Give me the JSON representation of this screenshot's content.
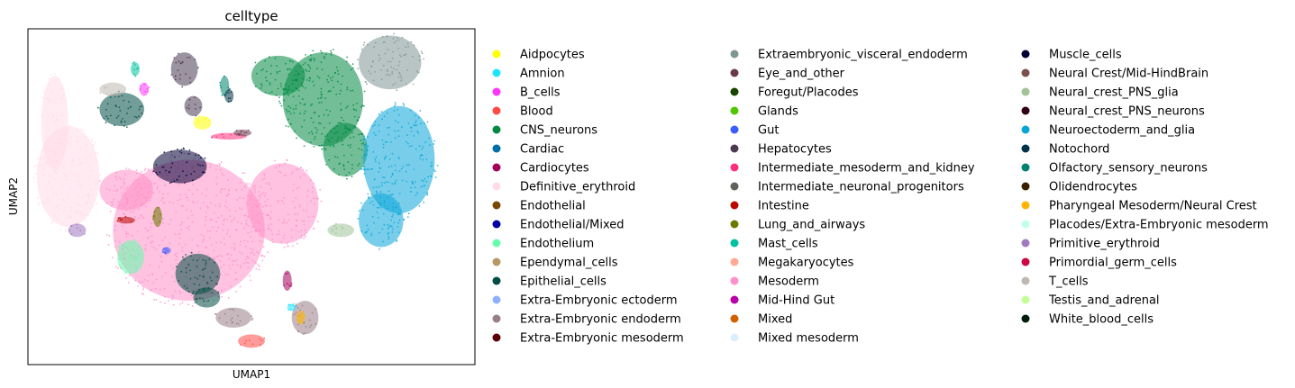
{
  "chart_data": {
    "type": "scatter",
    "title": "celltype",
    "xlabel": "UMAP1",
    "ylabel": "UMAP2",
    "xlim": [
      0,
      100
    ],
    "ylim": [
      0,
      100
    ],
    "xticks": [],
    "yticks": [],
    "grid": false,
    "legend_placement": "right",
    "legend_columns": 3,
    "legend": [
      {
        "name": "Aidpocytes",
        "color": "#ffff00"
      },
      {
        "name": "Amnion",
        "color": "#1ce6ff"
      },
      {
        "name": "B_cells",
        "color": "#ff34ff"
      },
      {
        "name": "Blood",
        "color": "#ff4a46"
      },
      {
        "name": "CNS_neurons",
        "color": "#008941"
      },
      {
        "name": "Cardiac",
        "color": "#006fa6"
      },
      {
        "name": "Cardiocytes",
        "color": "#a30059"
      },
      {
        "name": "Definitive_erythroid",
        "color": "#ffdbe5"
      },
      {
        "name": "Endothelial",
        "color": "#7a4900"
      },
      {
        "name": "Endothelial/Mixed",
        "color": "#0000a6"
      },
      {
        "name": "Endothelium",
        "color": "#63ffac"
      },
      {
        "name": "Ependymal_cells",
        "color": "#b79762"
      },
      {
        "name": "Epithelial_cells",
        "color": "#004d43"
      },
      {
        "name": "Extra-Embryonic ectoderm",
        "color": "#8fb0ff"
      },
      {
        "name": "Extra-Embryonic endoderm",
        "color": "#997d87"
      },
      {
        "name": "Extra-Embryonic mesoderm",
        "color": "#5a0007"
      },
      {
        "name": "Extraembryonic_visceral_endoderm",
        "color": "#809693"
      },
      {
        "name": "Eye_and_other",
        "color": "#6a3a4c"
      },
      {
        "name": "Foregut/Placodes",
        "color": "#1b4400"
      },
      {
        "name": "Glands",
        "color": "#4fc601"
      },
      {
        "name": "Gut",
        "color": "#3b5dff"
      },
      {
        "name": "Hepatocytes",
        "color": "#4a3b53"
      },
      {
        "name": "Intermediate_mesoderm_and_kidney",
        "color": "#ff2f80"
      },
      {
        "name": "Intermediate_neuronal_progenitors",
        "color": "#61615a"
      },
      {
        "name": "Intestine",
        "color": "#ba0900"
      },
      {
        "name": "Lung_and_airways",
        "color": "#6b7900"
      },
      {
        "name": "Mast_cells",
        "color": "#00c2a0"
      },
      {
        "name": "Megakaryocytes",
        "color": "#ffaa92"
      },
      {
        "name": "Mesoderm",
        "color": "#ff90c9"
      },
      {
        "name": "Mid-Hind Gut",
        "color": "#b903aa"
      },
      {
        "name": "Mixed",
        "color": "#d16100"
      },
      {
        "name": "Mixed mesoderm",
        "color": "#ddefff"
      },
      {
        "name": "Muscle_cells",
        "color": "#000035"
      },
      {
        "name": "Neural Crest/Mid-HindBrain",
        "color": "#7b4f4b"
      },
      {
        "name": "Neural_crest_PNS_glia",
        "color": "#a1c299"
      },
      {
        "name": "Neural_crest_PNS_neurons",
        "color": "#300018"
      },
      {
        "name": "Neuroectoderm_and_glia",
        "color": "#0aa6d8"
      },
      {
        "name": "Notochord",
        "color": "#013349"
      },
      {
        "name": "Olfactory_sensory_neurons",
        "color": "#00846f"
      },
      {
        "name": "Olidendrocytes",
        "color": "#372101"
      },
      {
        "name": "Pharyngeal Mesoderm/Neural Crest",
        "color": "#ffb500"
      },
      {
        "name": "Placodes/Extra-Embryonic mesoderm",
        "color": "#c2ffed"
      },
      {
        "name": "Primitive_erythroid",
        "color": "#a079bf"
      },
      {
        "name": "Primordial_germ_cells",
        "color": "#cc0744"
      },
      {
        "name": "T_cells",
        "color": "#c0b9b2"
      },
      {
        "name": "Testis_and_adrenal",
        "color": "#c2ff99"
      },
      {
        "name": "White_blood_cells",
        "color": "#001e09"
      }
    ],
    "clusters": [
      {
        "name": "Mesoderm",
        "x": 36,
        "y": 40,
        "rx": 17,
        "ry": 21
      },
      {
        "name": "Mesoderm",
        "x": 57,
        "y": 48,
        "rx": 8,
        "ry": 12
      },
      {
        "name": "Mesoderm",
        "x": 22,
        "y": 52,
        "rx": 6,
        "ry": 6
      },
      {
        "name": "Definitive_erythroid",
        "x": 9,
        "y": 56,
        "rx": 7,
        "ry": 15
      },
      {
        "name": "Definitive_erythroid",
        "x": 6,
        "y": 72,
        "rx": 3,
        "ry": 14
      },
      {
        "name": "CNS_neurons",
        "x": 66,
        "y": 79,
        "rx": 9,
        "ry": 14
      },
      {
        "name": "CNS_neurons",
        "x": 56,
        "y": 86,
        "rx": 6,
        "ry": 6
      },
      {
        "name": "CNS_neurons",
        "x": 71,
        "y": 64,
        "rx": 5,
        "ry": 8
      },
      {
        "name": "Neuroectoderm_and_glia",
        "x": 83,
        "y": 61,
        "rx": 8,
        "ry": 16
      },
      {
        "name": "Neuroectoderm_and_glia",
        "x": 79,
        "y": 43,
        "rx": 5,
        "ry": 8
      },
      {
        "name": "Extraembryonic_visceral_endoderm",
        "x": 81,
        "y": 90,
        "rx": 7,
        "ry": 8
      },
      {
        "name": "Epithelial_cells",
        "x": 21,
        "y": 76,
        "rx": 5,
        "ry": 5
      },
      {
        "name": "Epithelial_cells",
        "x": 38,
        "y": 27,
        "rx": 5,
        "ry": 6
      },
      {
        "name": "Epithelial_cells",
        "x": 40,
        "y": 20,
        "rx": 3,
        "ry": 3
      },
      {
        "name": "Muscle_cells",
        "x": 34,
        "y": 59,
        "rx": 6,
        "ry": 5
      },
      {
        "name": "Hepatocytes",
        "x": 35,
        "y": 88,
        "rx": 3,
        "ry": 5
      },
      {
        "name": "Hepatocytes",
        "x": 37,
        "y": 77,
        "rx": 2,
        "ry": 3
      },
      {
        "name": "Endothelium",
        "x": 23,
        "y": 32,
        "rx": 3,
        "ry": 5
      },
      {
        "name": "Primitive_erythroid",
        "x": 11,
        "y": 40,
        "rx": 2,
        "ry": 2
      },
      {
        "name": "Aidpocytes",
        "x": 39,
        "y": 72,
        "rx": 2,
        "ry": 2
      },
      {
        "name": "B_cells",
        "x": 26,
        "y": 82,
        "rx": 1,
        "ry": 2
      },
      {
        "name": "T_cells",
        "x": 19,
        "y": 82,
        "rx": 3,
        "ry": 2
      },
      {
        "name": "Extra-Embryonic endoderm",
        "x": 46,
        "y": 14,
        "rx": 4,
        "ry": 3
      },
      {
        "name": "Extra-Embryonic endoderm",
        "x": 62,
        "y": 14,
        "rx": 3,
        "ry": 5
      },
      {
        "name": "Blood",
        "x": 50,
        "y": 7,
        "rx": 3,
        "ry": 2
      },
      {
        "name": "Lung_and_airways",
        "x": 29,
        "y": 44,
        "rx": 1,
        "ry": 3
      },
      {
        "name": "Neural_crest_PNS_glia",
        "x": 70,
        "y": 40,
        "rx": 3,
        "ry": 2
      },
      {
        "name": "Intestine",
        "x": 22,
        "y": 43,
        "rx": 2,
        "ry": 1
      },
      {
        "name": "Intermediate_mesoderm_and_kidney",
        "x": 45,
        "y": 68,
        "rx": 4,
        "ry": 1
      },
      {
        "name": "Mast_cells",
        "x": 24,
        "y": 88,
        "rx": 1,
        "ry": 2
      },
      {
        "name": "Cardiocytes",
        "x": 58,
        "y": 25,
        "rx": 1,
        "ry": 3
      },
      {
        "name": "Pharyngeal Mesoderm/Neural Crest",
        "x": 61,
        "y": 14,
        "rx": 1,
        "ry": 2
      },
      {
        "name": "Amnion",
        "x": 59,
        "y": 17,
        "rx": 1,
        "ry": 1
      },
      {
        "name": "Eye_and_other",
        "x": 48,
        "y": 69,
        "rx": 2,
        "ry": 1
      },
      {
        "name": "Olfactory_sensory_neurons",
        "x": 44,
        "y": 83,
        "rx": 1,
        "ry": 3
      },
      {
        "name": "Gut",
        "x": 31,
        "y": 34,
        "rx": 1,
        "ry": 1
      },
      {
        "name": "Notochord",
        "x": 45,
        "y": 80,
        "rx": 1,
        "ry": 2
      }
    ]
  }
}
